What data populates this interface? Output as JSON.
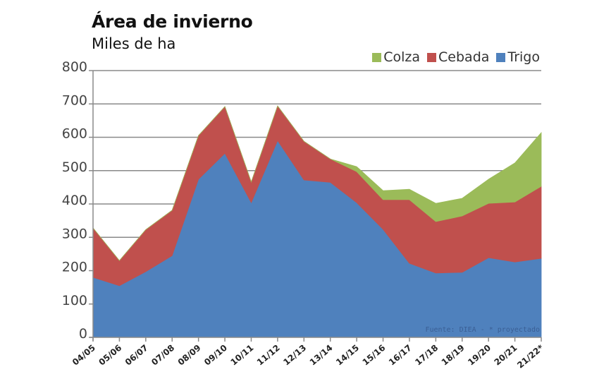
{
  "chart_data": {
    "type": "area",
    "stacked": true,
    "title": "Área de invierno",
    "subtitle": "Miles de ha",
    "xlabel": "",
    "ylabel": "",
    "categories": [
      "04/05",
      "05/06",
      "06/07",
      "07/08",
      "08/09",
      "09/10",
      "10/11",
      "11/12",
      "12/13",
      "13/14",
      "14/15",
      "15/16",
      "16/17",
      "17/18",
      "18/19",
      "19/20",
      "20/21",
      "21/22*"
    ],
    "series": [
      {
        "name": "Trigo",
        "color": "#4f81bd",
        "values": [
          180,
          155,
          197,
          245,
          474,
          552,
          404,
          590,
          472,
          465,
          404,
          324,
          222,
          193,
          195,
          239,
          226,
          237
        ]
      },
      {
        "name": "Cebada",
        "color": "#c0504d",
        "values": [
          148,
          75,
          126,
          136,
          131,
          140,
          62,
          104,
          116,
          70,
          93,
          89,
          191,
          154,
          169,
          163,
          180,
          216
        ]
      },
      {
        "name": "Colza",
        "color": "#9bbb59",
        "values": [
          0,
          0,
          0,
          0,
          0,
          0,
          0,
          0,
          0,
          0,
          15,
          27,
          31,
          55,
          53,
          72,
          117,
          161
        ]
      }
    ],
    "legend": {
      "order": [
        "Colza",
        "Cebada",
        "Trigo"
      ],
      "position": "top-right"
    },
    "ylim": [
      0,
      800
    ],
    "yticks": [
      0,
      100,
      200,
      300,
      400,
      500,
      600,
      700,
      800
    ],
    "grid": true,
    "annotation": "Fuente: DIEA - * proyectado"
  }
}
